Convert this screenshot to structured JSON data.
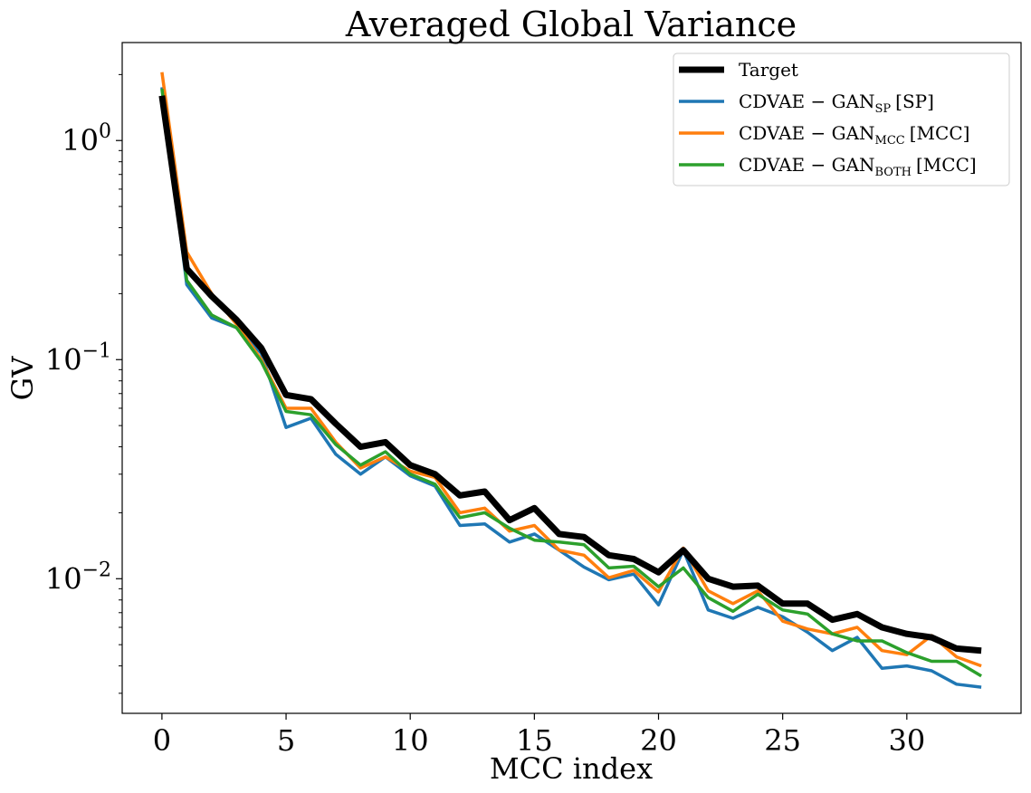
{
  "chart_data": {
    "type": "line",
    "title": "Averaged Global Variance",
    "xlabel": "MCC index",
    "ylabel": "GV",
    "yscale": "log",
    "xlim": [
      -1.6,
      34.6
    ],
    "ylim": [
      0.00243,
      2.8
    ],
    "x_ticks": [
      0,
      5,
      10,
      15,
      20,
      25,
      30
    ],
    "y_ticks": [
      {
        "value": 1,
        "base": "10",
        "exp": "0"
      },
      {
        "value": 0.1,
        "base": "10",
        "exp": "−1"
      },
      {
        "value": 0.01,
        "base": "10",
        "exp": "−2"
      }
    ],
    "legend_position": "top-right",
    "x": [
      0,
      1,
      2,
      3,
      4,
      5,
      6,
      7,
      8,
      9,
      10,
      11,
      12,
      13,
      14,
      15,
      16,
      17,
      18,
      19,
      20,
      21,
      22,
      23,
      24,
      25,
      26,
      27,
      28,
      29,
      30,
      31,
      32,
      33
    ],
    "series": [
      {
        "name": "Target",
        "label_main": "Target",
        "label_sub": "",
        "label_tail": "",
        "color": "#000000",
        "width": 7,
        "values": [
          1.6,
          0.26,
          0.195,
          0.152,
          0.113,
          0.069,
          0.066,
          0.051,
          0.04,
          0.042,
          0.033,
          0.03,
          0.024,
          0.025,
          0.0185,
          0.021,
          0.016,
          0.0155,
          0.0128,
          0.0123,
          0.0107,
          0.0135,
          0.01,
          0.0092,
          0.0093,
          0.0077,
          0.0077,
          0.0065,
          0.0069,
          0.006,
          0.0056,
          0.0054,
          0.0048,
          0.0047
        ]
      },
      {
        "name": "CDVAE-GAN_SP [SP]",
        "label_main": "CDVAE − GAN",
        "label_sub": "SP",
        "label_tail": "[SP]",
        "color": "#1f77b4",
        "width": 3.5,
        "values": [
          1.75,
          0.22,
          0.155,
          0.14,
          0.107,
          0.049,
          0.054,
          0.037,
          0.03,
          0.036,
          0.0295,
          0.0265,
          0.0175,
          0.0178,
          0.0147,
          0.016,
          0.0135,
          0.0113,
          0.0099,
          0.0105,
          0.0076,
          0.0135,
          0.0072,
          0.0066,
          0.0074,
          0.0067,
          0.0057,
          0.0047,
          0.0054,
          0.0039,
          0.004,
          0.0038,
          0.0033,
          0.0032
        ]
      },
      {
        "name": "CDVAE-GAN_MCC [MCC]",
        "label_main": "CDVAE − GAN",
        "label_sub": "MCC",
        "label_tail": "[MCC]",
        "color": "#ff7f0e",
        "width": 3.5,
        "values": [
          2.05,
          0.31,
          0.2,
          0.145,
          0.1,
          0.06,
          0.06,
          0.042,
          0.032,
          0.036,
          0.031,
          0.029,
          0.02,
          0.021,
          0.0165,
          0.0175,
          0.0135,
          0.0128,
          0.0101,
          0.0109,
          0.0087,
          0.0138,
          0.0088,
          0.0077,
          0.0088,
          0.0064,
          0.0059,
          0.0056,
          0.006,
          0.0047,
          0.0045,
          0.0055,
          0.0044,
          0.004
        ]
      },
      {
        "name": "CDVAE-GAN_BOTH [MCC]",
        "label_main": "CDVAE − GAN",
        "label_sub": "BOTH",
        "label_tail": "[MCC]",
        "color": "#2ca02c",
        "width": 3.5,
        "values": [
          1.72,
          0.23,
          0.16,
          0.14,
          0.098,
          0.058,
          0.056,
          0.041,
          0.033,
          0.038,
          0.03,
          0.027,
          0.019,
          0.02,
          0.017,
          0.015,
          0.0147,
          0.0143,
          0.0112,
          0.0114,
          0.0092,
          0.0112,
          0.0082,
          0.0071,
          0.0085,
          0.0072,
          0.0069,
          0.0056,
          0.0052,
          0.0052,
          0.0046,
          0.0042,
          0.0042,
          0.0036
        ]
      }
    ]
  }
}
